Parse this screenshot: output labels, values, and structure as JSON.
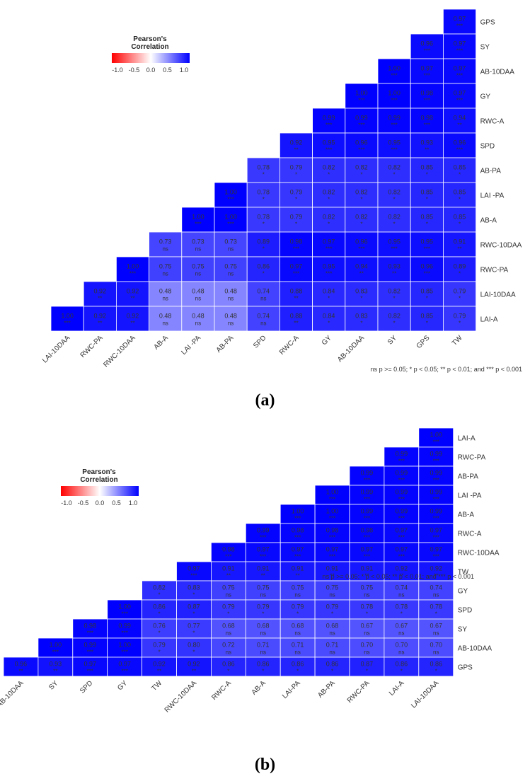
{
  "captions": [
    "(a)",
    "(b)"
  ],
  "chart_data": [
    {
      "type": "heatmap",
      "legend": {
        "title_line1": "Pearson's",
        "title_line2": "Correlation",
        "ticks": [
          "-1.0",
          "-0.5",
          "0.0",
          "0.5",
          "1.0"
        ],
        "colors": {
          "low": "#ff0000",
          "mid": "#ffffff",
          "high": "#0000ff"
        },
        "placement": "top-left"
      },
      "x_labels": [
        "LAI-10DAA",
        "RWC-PA",
        "RWC-10DAA",
        "AB-A",
        "LAI -PA",
        "AB-PA",
        "SPD",
        "RWC-A",
        "GY",
        "AB-10DAA",
        "SY",
        "GPS",
        "TW"
      ],
      "y_labels": [
        "GPS",
        "SY",
        "AB-10DAA",
        "GY",
        "RWC-A",
        "SPD",
        "AB-PA",
        "LAI -PA",
        "AB-A",
        "RWC-10DAA",
        "RWC-PA",
        "LAI-10DAA",
        "LAI-A"
      ],
      "values": [
        [
          0.97
        ],
        [
          0.96,
          0.97
        ],
        [
          1.0,
          0.97,
          0.97
        ],
        [
          1.0,
          1.0,
          0.98,
          0.97
        ],
        [
          0.99,
          0.99,
          0.99,
          0.98,
          0.94
        ],
        [
          0.92,
          0.95,
          0.96,
          0.95,
          0.93,
          0.96
        ],
        [
          0.78,
          0.79,
          0.82,
          0.82,
          0.82,
          0.85,
          0.85
        ],
        [
          1.0,
          0.78,
          0.79,
          0.82,
          0.82,
          0.82,
          0.85,
          0.85
        ],
        [
          1.0,
          1.0,
          0.78,
          0.79,
          0.82,
          0.82,
          0.82,
          0.85,
          0.85
        ],
        [
          0.73,
          0.73,
          0.73,
          0.89,
          0.98,
          0.97,
          0.96,
          0.95,
          0.95,
          0.91
        ],
        [
          1.0,
          0.75,
          0.75,
          0.75,
          0.86,
          0.97,
          0.95,
          0.94,
          0.93,
          0.96,
          0.89
        ],
        [
          0.92,
          0.92,
          0.48,
          0.48,
          0.48,
          0.74,
          0.88,
          0.84,
          0.83,
          0.82,
          0.85,
          0.79
        ],
        [
          1.0,
          0.92,
          0.92,
          0.48,
          0.48,
          0.48,
          0.74,
          0.88,
          0.84,
          0.83,
          0.82,
          0.85,
          0.79
        ]
      ],
      "significance": [
        [
          "***"
        ],
        [
          "***",
          "***"
        ],
        [
          "***",
          "***",
          "***"
        ],
        [
          "***",
          "***",
          "***",
          "***"
        ],
        [
          "***",
          "***",
          "***",
          "***",
          "**"
        ],
        [
          "**",
          "***",
          "***",
          "***",
          "**",
          "***"
        ],
        [
          "*",
          "*",
          "*",
          "*",
          "*",
          "*",
          "*"
        ],
        [
          "***",
          "*",
          "*",
          "*",
          "*",
          "*",
          "*",
          "*"
        ],
        [
          "***",
          "***",
          "*",
          "*",
          "*",
          "*",
          "*",
          "*",
          "*"
        ],
        [
          "ns",
          "ns",
          "ns",
          "*",
          "***",
          "***",
          "***",
          "***",
          "***",
          "**"
        ],
        [
          "***",
          "ns",
          "ns",
          "ns",
          "*",
          "***",
          "***",
          "**",
          "**",
          "***",
          "*"
        ],
        [
          "**",
          "**",
          "ns",
          "ns",
          "ns",
          "ns",
          "**",
          "*",
          "*",
          "*",
          "*",
          "*"
        ],
        [
          "***",
          "**",
          "**",
          "ns",
          "ns",
          "ns",
          "ns",
          "**",
          "*",
          "*",
          "*",
          "*",
          "*"
        ]
      ],
      "note": "ns p >= 0.05; * p < 0.05; ** p < 0.01; and *** p < 0.001"
    },
    {
      "type": "heatmap",
      "legend": {
        "title_line1": "Pearson's",
        "title_line2": "Correlation",
        "ticks": [
          "-1.0",
          "-0.5",
          "0.0",
          "0.5",
          "1.0"
        ],
        "colors": {
          "low": "#ff0000",
          "mid": "#ffffff",
          "high": "#0000ff"
        },
        "placement": "top-left"
      },
      "x_labels": [
        "AB-10DAA",
        "SY",
        "SPD",
        "GY",
        "TW",
        "RWC-10DAA",
        "RWC-A",
        "AB-A",
        "LAI-PA",
        "AB-PA",
        "RWC-PA",
        "LAI-A",
        "LAI-10DAA"
      ],
      "y_labels": [
        "LAI-A",
        "RWC-PA",
        "AB-PA",
        "LAI -PA",
        "AB-A",
        "RWC-A",
        "RWC-10DAA",
        "TW",
        "GY",
        "SPD",
        "SY",
        "AB-10DAA",
        "GPS"
      ],
      "values": [
        [
          1.0
        ],
        [
          0.99,
          0.99
        ],
        [
          0.99,
          0.99,
          0.99
        ],
        [
          1.0,
          0.99,
          0.99,
          0.99
        ],
        [
          1.0,
          1.0,
          0.99,
          0.99,
          0.99
        ],
        [
          0.99,
          0.98,
          0.98,
          0.98,
          0.97,
          0.97
        ],
        [
          0.98,
          0.97,
          0.97,
          0.97,
          0.97,
          0.97,
          0.97
        ],
        [
          0.97,
          0.91,
          0.91,
          0.91,
          0.91,
          0.91,
          0.92,
          0.92
        ],
        [
          0.82,
          0.83,
          0.75,
          0.75,
          0.75,
          0.75,
          0.75,
          0.74,
          0.74
        ],
        [
          1.0,
          0.86,
          0.87,
          0.79,
          0.79,
          0.79,
          0.79,
          0.78,
          0.78,
          0.78
        ],
        [
          0.98,
          0.99,
          0.76,
          0.77,
          0.68,
          0.68,
          0.68,
          0.68,
          0.67,
          0.67,
          0.67
        ],
        [
          1.0,
          0.99,
          1.0,
          0.79,
          0.8,
          0.72,
          0.71,
          0.71,
          0.71,
          0.7,
          0.7,
          0.7
        ],
        [
          0.96,
          0.93,
          0.97,
          0.97,
          0.92,
          0.92,
          0.86,
          0.86,
          0.86,
          0.86,
          0.87,
          0.86,
          0.86
        ]
      ],
      "significance": [
        [
          "***"
        ],
        [
          "***",
          "***"
        ],
        [
          "***",
          "***",
          "***"
        ],
        [
          "***",
          "***",
          "***",
          "***"
        ],
        [
          "***",
          "***",
          "***",
          "***",
          "***"
        ],
        [
          "***",
          "***",
          "***",
          "***",
          "***",
          "***"
        ],
        [
          "***",
          "***",
          "***",
          "***",
          "***",
          "***",
          "***"
        ],
        [
          "***",
          "**",
          "**",
          "**",
          "**",
          "**",
          "**",
          "**"
        ],
        [
          "*",
          "*",
          "ns",
          "ns",
          "ns",
          "ns",
          "ns",
          "ns",
          "ns"
        ],
        [
          "***",
          "*",
          "*",
          "*",
          "*",
          "*",
          "*",
          "*",
          "*",
          "*"
        ],
        [
          "***",
          "***",
          "*",
          "*",
          "ns",
          "ns",
          "ns",
          "ns",
          "ns",
          "ns",
          "ns"
        ],
        [
          "***",
          "***",
          "***",
          "*",
          "*",
          "ns",
          "ns",
          "ns",
          "ns",
          "ns",
          "ns",
          "ns"
        ],
        [
          "**",
          "**",
          "***",
          "***",
          "**",
          "**",
          "*",
          "*",
          "*",
          "*",
          "*",
          "*",
          "*"
        ]
      ],
      "note": "ns p >= 0.05; * p < 0.05; ** p < 0.01; and *** p < 0.001"
    }
  ]
}
